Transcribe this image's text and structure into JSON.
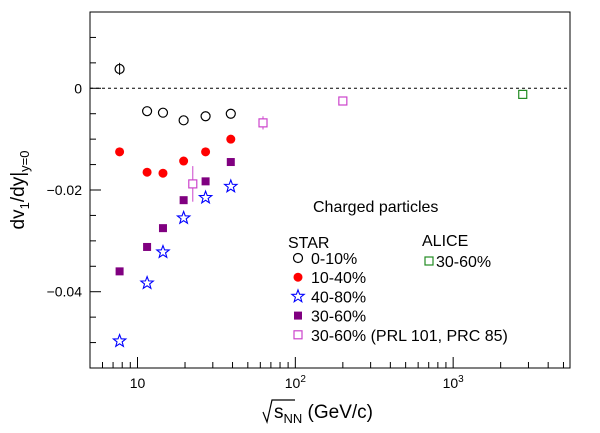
{
  "chart_data": {
    "type": "scatter",
    "xscale": "log",
    "xlim": [
      5,
      5500
    ],
    "ylim": [
      -0.055,
      0.015
    ],
    "xlabel": "√s_NN (GeV/c)",
    "xlabel_parts": {
      "base": "s",
      "sub": "NN",
      "units": " (GeV/c)"
    },
    "ylabel_parts": {
      "main": "dv",
      "sub1": "1",
      "mid": "/dy|",
      "sub2": "y=0"
    },
    "x_ticks": [
      {
        "value": 10,
        "label": "10"
      },
      {
        "value": 100,
        "label": "10",
        "exp": "2"
      },
      {
        "value": 1000,
        "label": "10",
        "exp": "3"
      }
    ],
    "y_ticks": [
      {
        "value": 0,
        "label": "0"
      },
      {
        "value": -0.02,
        "label": "−0.02"
      },
      {
        "value": -0.04,
        "label": "−0.04"
      }
    ],
    "zero_line": true,
    "annotation": "Charged particles",
    "legend": {
      "star_title": "STAR",
      "alice_title": "ALICE",
      "star_entries": [
        {
          "series": 0,
          "label": "0-10%"
        },
        {
          "series": 1,
          "label": "10-40%"
        },
        {
          "series": 2,
          "label": "40-80%"
        },
        {
          "series": 3,
          "label": "30-60%"
        },
        {
          "series": 4,
          "label": "30-60% (PRL 101, PRC 85)"
        }
      ],
      "alice_entries": [
        {
          "series": 5,
          "label": "30-60%"
        }
      ]
    },
    "series": [
      {
        "name": "0-10%",
        "marker": "circle-open",
        "color": "#000000",
        "points": [
          {
            "x": 7.7,
            "y": 0.0038,
            "err": 0.0012
          },
          {
            "x": 11.5,
            "y": -0.0045
          },
          {
            "x": 14.5,
            "y": -0.0048
          },
          {
            "x": 19.6,
            "y": -0.0063
          },
          {
            "x": 27,
            "y": -0.0055
          },
          {
            "x": 39,
            "y": -0.005
          }
        ]
      },
      {
        "name": "10-40%",
        "marker": "circle-filled",
        "color": "#ff0000",
        "points": [
          {
            "x": 7.7,
            "y": -0.0125
          },
          {
            "x": 11.5,
            "y": -0.0165
          },
          {
            "x": 14.5,
            "y": -0.0167
          },
          {
            "x": 19.6,
            "y": -0.0143
          },
          {
            "x": 27,
            "y": -0.0125
          },
          {
            "x": 39,
            "y": -0.01
          }
        ]
      },
      {
        "name": "40-80%",
        "marker": "star-open",
        "color": "#0000ff",
        "points": [
          {
            "x": 7.7,
            "y": -0.0497
          },
          {
            "x": 11.5,
            "y": -0.0383
          },
          {
            "x": 14.5,
            "y": -0.0322
          },
          {
            "x": 19.6,
            "y": -0.0255
          },
          {
            "x": 27,
            "y": -0.0215
          },
          {
            "x": 39,
            "y": -0.0193
          }
        ]
      },
      {
        "name": "30-60%",
        "marker": "square-filled",
        "color": "#800080",
        "points": [
          {
            "x": 7.7,
            "y": -0.036
          },
          {
            "x": 11.5,
            "y": -0.0312
          },
          {
            "x": 14.5,
            "y": -0.0275
          },
          {
            "x": 19.6,
            "y": -0.022
          },
          {
            "x": 27,
            "y": -0.0183
          },
          {
            "x": 39,
            "y": -0.0145
          }
        ]
      },
      {
        "name": "30-60% (PRL 101, PRC 85)",
        "marker": "square-open",
        "color": "#cc44cc",
        "points": [
          {
            "x": 22.4,
            "y": -0.0188,
            "err": 0.0035
          },
          {
            "x": 62.4,
            "y": -0.0068,
            "err": 0.0013
          },
          {
            "x": 200,
            "y": -0.0025
          }
        ]
      },
      {
        "name": "30-60%",
        "marker": "square-open",
        "color": "#228b22",
        "points": [
          {
            "x": 2760,
            "y": -0.0012
          }
        ]
      }
    ]
  }
}
